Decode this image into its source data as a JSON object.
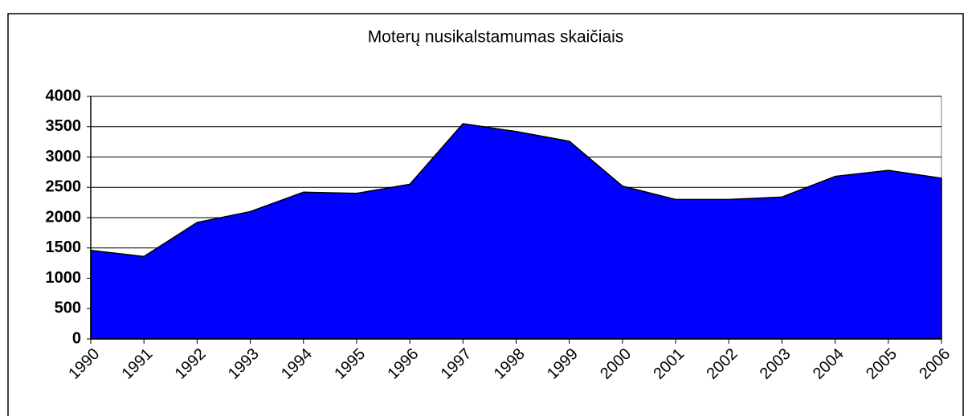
{
  "chart_data": {
    "type": "area",
    "title": "Moterų nusikalstamumas skaičiais",
    "categories": [
      "1990",
      "1991",
      "1992",
      "1993",
      "1994",
      "1995",
      "1996",
      "1997",
      "1998",
      "1999",
      "2000",
      "2001",
      "2002",
      "2003",
      "2004",
      "2005",
      "2006"
    ],
    "values": [
      1460,
      1360,
      1920,
      2100,
      2420,
      2400,
      2550,
      3550,
      3420,
      3260,
      2520,
      2300,
      2300,
      2340,
      2680,
      2780,
      2650
    ],
    "color": "#0000ff",
    "ylim": [
      0,
      4000
    ],
    "yticks": [
      0,
      500,
      1000,
      1500,
      2000,
      2500,
      3000,
      3500,
      4000
    ],
    "grid": true
  }
}
